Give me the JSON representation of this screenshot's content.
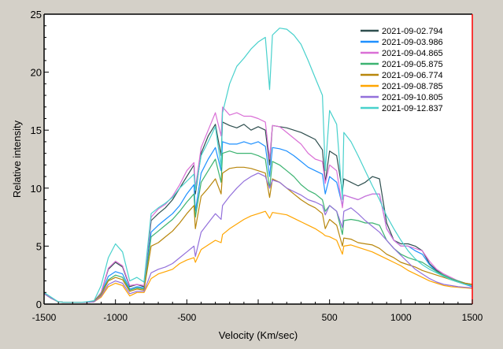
{
  "chart_data": {
    "type": "line",
    "title": "",
    "xlabel": "Velocity (Km/sec)",
    "ylabel": "Relative intensity",
    "xlim": [
      -1500,
      1500
    ],
    "ylim": [
      0,
      25
    ],
    "x_tick_labels": [
      "-1500",
      "-1000",
      "-500",
      "500",
      "1000",
      "1500"
    ],
    "x_tick_values": [
      -1500,
      -1000,
      -500,
      500,
      1000,
      1500
    ],
    "y_tick_labels": [
      "0",
      "5",
      "10",
      "15",
      "20",
      "25"
    ],
    "y_tick_values": [
      0,
      5,
      10,
      15,
      20,
      25
    ],
    "grid": false,
    "legend_position": "top-right",
    "frame_right_color": "#ff0000",
    "x": [
      -1500,
      -1450,
      -1400,
      -1350,
      -1300,
      -1250,
      -1200,
      -1150,
      -1100,
      -1050,
      -1000,
      -950,
      -900,
      -850,
      -800,
      -750,
      -700,
      -650,
      -600,
      -550,
      -500,
      -450,
      -440,
      -400,
      -350,
      -300,
      -260,
      -250,
      -200,
      -150,
      -100,
      -50,
      0,
      50,
      80,
      100,
      150,
      200,
      250,
      300,
      350,
      400,
      450,
      470,
      500,
      550,
      590,
      600,
      650,
      700,
      750,
      800,
      850,
      900,
      950,
      1000,
      1050,
      1100,
      1150,
      1200,
      1250,
      1300,
      1350,
      1400,
      1450,
      1500
    ],
    "series": [
      {
        "name": "2021-09-02.794",
        "color": "#2f4f4f",
        "values": [
          0.9,
          0.5,
          0.2,
          0.15,
          0.15,
          0.15,
          0.15,
          0.25,
          1.0,
          3.0,
          3.6,
          3.2,
          1.5,
          1.7,
          1.5,
          7.2,
          7.8,
          8.3,
          9.0,
          10,
          11,
          12,
          9.5,
          13,
          14.5,
          15.5,
          12.8,
          15.7,
          15.4,
          15.2,
          15.5,
          15,
          15.3,
          15,
          12,
          15.4,
          15.3,
          15.2,
          15,
          14.8,
          14.5,
          14.2,
          13.3,
          10.5,
          13.2,
          12.8,
          9.7,
          10.8,
          10.5,
          10.2,
          10.5,
          11,
          10.8,
          7,
          5.5,
          5.2,
          5.2,
          5.0,
          4.6,
          3.5,
          2.9,
          2.5,
          2.2,
          2.0,
          1.8,
          1.6
        ]
      },
      {
        "name": "2021-09-03.986",
        "color": "#1e90ff",
        "values": [
          0.9,
          0.5,
          0.2,
          0.15,
          0.15,
          0.15,
          0.15,
          0.25,
          0.9,
          2.4,
          2.8,
          2.6,
          1.3,
          1.5,
          1.4,
          6.2,
          6.8,
          7.3,
          7.8,
          8.5,
          9.5,
          10.3,
          8,
          11.3,
          12.5,
          13.5,
          11.5,
          14,
          13.8,
          13.8,
          14,
          13.8,
          14,
          13.6,
          11,
          13.5,
          13.4,
          13.2,
          12.8,
          12.3,
          11.8,
          11.5,
          11.2,
          9.5,
          11,
          10.5,
          8.5,
          9.4,
          9.2,
          9.0,
          9.3,
          9.5,
          9.5,
          6.5,
          5.5,
          5.0,
          5.0,
          4.6,
          4.3,
          3.4,
          2.8,
          2.4,
          2.1,
          1.9,
          1.7,
          1.5
        ]
      },
      {
        "name": "2021-09-04.865",
        "color": "#da70d6",
        "values": [
          0.9,
          0.5,
          0.2,
          0.15,
          0.15,
          0.15,
          0.15,
          0.25,
          1.0,
          3.1,
          3.7,
          3.3,
          1.6,
          1.7,
          1.6,
          7.5,
          8.2,
          8.6,
          9.3,
          10.3,
          11.5,
          12.2,
          10,
          13.5,
          15,
          16.5,
          14.5,
          17,
          16.3,
          16.5,
          16.2,
          16.2,
          16,
          15.7,
          12.5,
          15.4,
          15.3,
          14.8,
          14.3,
          13.8,
          13,
          12.5,
          12.3,
          10.4,
          12,
          11.5,
          8.3,
          9.4,
          9.2,
          9.0,
          9.3,
          9.5,
          9.5,
          6.5,
          5.5,
          5.0,
          5.0,
          4.8,
          4.6,
          3.7,
          3.0,
          2.6,
          2.3,
          2.0,
          1.8,
          1.7
        ]
      },
      {
        "name": "2021-09-05.875",
        "color": "#3cb371",
        "values": [
          0.9,
          0.5,
          0.2,
          0.15,
          0.15,
          0.15,
          0.15,
          0.25,
          0.9,
          2.1,
          2.5,
          2.3,
          1.2,
          1.4,
          1.3,
          5.8,
          6.3,
          6.8,
          7.3,
          8,
          8.8,
          9.5,
          7.5,
          10.5,
          11.5,
          12.5,
          10.5,
          13,
          13.2,
          13,
          13,
          13,
          12.8,
          12.5,
          10,
          12.3,
          12,
          11.5,
          11,
          10.3,
          9.8,
          9.5,
          9,
          8,
          8.5,
          8,
          6,
          7.2,
          7.3,
          7.2,
          7,
          7,
          6.8,
          5.5,
          4.8,
          4.3,
          4,
          3.8,
          3.6,
          3.2,
          2.8,
          2.5,
          2.2,
          2.0,
          1.8,
          1.7
        ]
      },
      {
        "name": "2021-09-06.774",
        "color": "#b8860b",
        "values": [
          0.9,
          0.5,
          0.2,
          0.15,
          0.15,
          0.15,
          0.15,
          0.25,
          0.8,
          2.0,
          2.3,
          2.1,
          1.1,
          1.3,
          1.2,
          5.0,
          5.3,
          5.8,
          6.3,
          7,
          7.8,
          8.5,
          6.5,
          9.3,
          10,
          10.8,
          9.5,
          11.3,
          11.7,
          11.8,
          11.8,
          11.7,
          11.5,
          11.3,
          9.2,
          10.8,
          10.5,
          10,
          9.5,
          9,
          8.6,
          8.3,
          7.8,
          6.5,
          7.3,
          6.8,
          5.0,
          5.7,
          5.6,
          5.3,
          5.2,
          5.1,
          4.8,
          4.3,
          4.0,
          3.6,
          3.4,
          3.2,
          2.9,
          2.7,
          2.5,
          2.3,
          2.1,
          1.9,
          1.8,
          1.7
        ]
      },
      {
        "name": "2021-09-08.785",
        "color": "#ffa500",
        "values": [
          0.9,
          0.5,
          0.2,
          0.15,
          0.15,
          0.15,
          0.15,
          0.2,
          0.6,
          1.5,
          1.8,
          1.6,
          0.7,
          1.0,
          1.0,
          2.2,
          2.6,
          2.8,
          3.0,
          3.5,
          3.8,
          4.0,
          3.6,
          4.7,
          5.1,
          5.5,
          5.3,
          6,
          6.5,
          6.9,
          7.3,
          7.6,
          7.8,
          8,
          7.4,
          7.9,
          7.8,
          7.7,
          7.4,
          7.1,
          6.8,
          6.5,
          6.1,
          5.9,
          5.8,
          5.5,
          4.3,
          5.0,
          5.1,
          4.9,
          4.7,
          4.5,
          4.2,
          3.9,
          3.6,
          3.3,
          2.9,
          2.6,
          2.3,
          2.0,
          1.8,
          1.6,
          1.5,
          1.45,
          1.4,
          1.35
        ]
      },
      {
        "name": "2021-09-10.805",
        "color": "#9370db",
        "values": [
          0.9,
          0.5,
          0.2,
          0.15,
          0.15,
          0.15,
          0.15,
          0.2,
          0.7,
          1.7,
          2.0,
          1.8,
          0.9,
          1.1,
          1.1,
          2.7,
          3.0,
          3.2,
          3.5,
          4.0,
          4.5,
          5,
          4.1,
          6.2,
          7,
          7.8,
          7.3,
          8.5,
          9.3,
          10,
          10.6,
          11,
          11.3,
          11,
          10,
          10.7,
          10.5,
          10,
          9.7,
          9.4,
          9,
          8.8,
          8.5,
          7.7,
          8.5,
          8,
          6.6,
          8.0,
          8.3,
          7.8,
          7.2,
          6.7,
          6.2,
          5.5,
          4.8,
          4.2,
          3.6,
          3.0,
          2.6,
          2.2,
          1.9,
          1.7,
          1.6,
          1.5,
          1.45,
          1.4
        ]
      },
      {
        "name": "2021-09-12.837",
        "color": "#48d1cc",
        "values": [
          1.0,
          0.6,
          0.2,
          0.15,
          0.15,
          0.15,
          0.2,
          0.3,
          1.6,
          4.0,
          5.2,
          4.5,
          2.0,
          2.3,
          1.9,
          7.8,
          8.3,
          8.7,
          9.2,
          10,
          10.6,
          11.2,
          9.8,
          12.8,
          14,
          15.3,
          11.8,
          16.5,
          19,
          20.5,
          21.2,
          22,
          22.6,
          23,
          18.5,
          23.2,
          23.8,
          23.7,
          23.2,
          22.4,
          21,
          19.5,
          18,
          11.5,
          16.7,
          15.5,
          9,
          14.8,
          14,
          12.8,
          11.5,
          10.2,
          9,
          7.6,
          6.5,
          5.5,
          4.6,
          3.9,
          3.4,
          3.0,
          2.7,
          2.4,
          2.1,
          1.9,
          1.7,
          1.6
        ]
      }
    ]
  }
}
